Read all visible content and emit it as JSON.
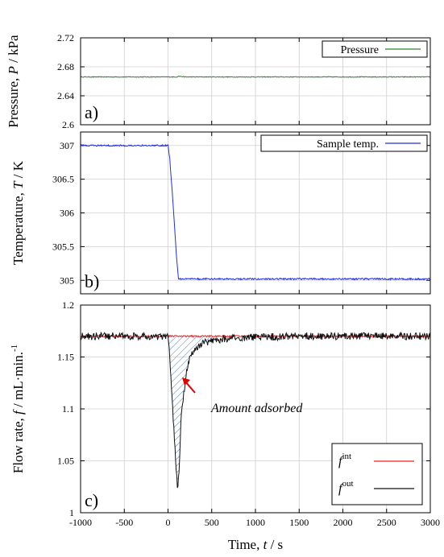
{
  "chart_data": [
    {
      "type": "line",
      "panel_label": "a)",
      "ylabel_parts": [
        "Pressure,",
        "P",
        "/ kPa"
      ],
      "ylim": [
        2.6,
        2.72
      ],
      "yticks": [
        "2.72",
        "2.68",
        "2.64",
        "2.6"
      ],
      "ytick_values": [
        2.72,
        2.68,
        2.64,
        2.6
      ],
      "xlim": [
        -1000,
        3000
      ],
      "grid": true,
      "legend_position": "top-right",
      "series": [
        {
          "name": "Pressure",
          "color": "#2e7d32",
          "x": [
            -1000,
            100,
            120,
            200,
            3000
          ],
          "y": [
            2.666,
            2.666,
            2.667,
            2.666,
            2.666
          ]
        }
      ]
    },
    {
      "type": "line",
      "panel_label": "b)",
      "ylabel_parts": [
        "Temperature,",
        "T",
        "/ K"
      ],
      "ylim": [
        304.8,
        307.2
      ],
      "yticks": [
        "307",
        "306.5",
        "306",
        "305.5",
        "305"
      ],
      "ytick_values": [
        307,
        306.5,
        306,
        305.5,
        305
      ],
      "xlim": [
        -1000,
        3000
      ],
      "grid": true,
      "legend_position": "top-right",
      "series": [
        {
          "name": "Sample temp.",
          "color": "#1f2fe0",
          "x": [
            -1000,
            0,
            20,
            60,
            100,
            120,
            3000
          ],
          "y": [
            307.0,
            307.0,
            306.8,
            306.1,
            305.3,
            305.02,
            305.02
          ]
        }
      ]
    },
    {
      "type": "line",
      "panel_label": "c)",
      "ylabel_parts": [
        "Flow rate,",
        "f",
        "/ mL·min.",
        "-1"
      ],
      "ylim": [
        1.0,
        1.2
      ],
      "yticks": [
        "1.2",
        "1.15",
        "1.1",
        "1.05",
        "1"
      ],
      "ytick_values": [
        1.2,
        1.15,
        1.1,
        1.05,
        1.0
      ],
      "xlim": [
        -1000,
        3000
      ],
      "xticks": [
        "-1000",
        "-500",
        "0",
        "500",
        "1000",
        "1500",
        "2000",
        "2500",
        "3000"
      ],
      "xtick_values": [
        -1000,
        -500,
        0,
        500,
        1000,
        1500,
        2000,
        2500,
        3000
      ],
      "xlabel_parts": [
        "Time,",
        "t",
        "/ s"
      ],
      "grid": true,
      "legend_position": "bottom-right",
      "annotation": "Amount adsorbed",
      "series": [
        {
          "name_base": "f",
          "name_sup": "int",
          "color": "#ff1f1f",
          "x": [
            -1000,
            3000
          ],
          "y": [
            1.17,
            1.17
          ]
        },
        {
          "name_base": "f",
          "name_sup": "out",
          "color": "#111111",
          "x": [
            -1000,
            0,
            20,
            60,
            110,
            130,
            150,
            200,
            250,
            300,
            400,
            500,
            700,
            1000,
            1500,
            2000,
            3000
          ],
          "y": [
            1.17,
            1.17,
            1.15,
            1.09,
            1.02,
            1.045,
            1.09,
            1.13,
            1.15,
            1.158,
            1.163,
            1.166,
            1.168,
            1.169,
            1.17,
            1.17,
            1.17
          ]
        }
      ]
    }
  ]
}
